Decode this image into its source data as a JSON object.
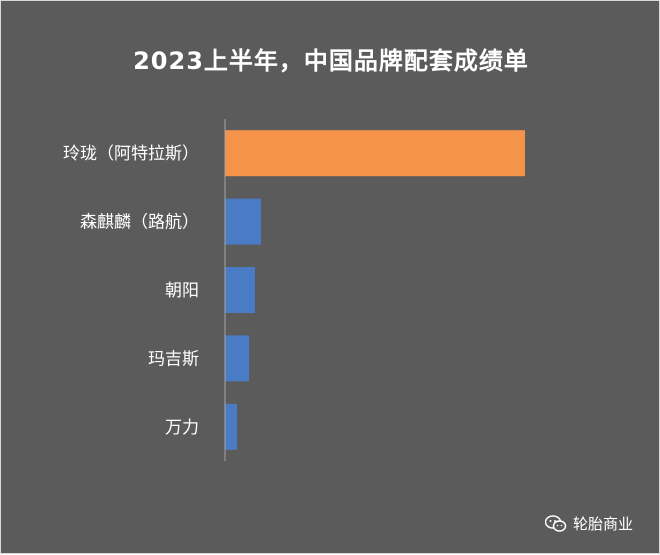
{
  "chart_data": {
    "type": "bar",
    "orientation": "horizontal",
    "title": "2023上半年，中国品牌配套成绩单",
    "categories": [
      "玲珑（阿特拉斯）",
      "森麒麟（路航）",
      "朝阳",
      "玛吉斯",
      "万力"
    ],
    "values": [
      100,
      12,
      10,
      8,
      4
    ],
    "xlim": [
      0,
      100
    ],
    "xlabel": "",
    "ylabel": "",
    "grid": false,
    "legend": "none",
    "colors": [
      "#f5934a",
      "#4a7cc6",
      "#4a7cc6",
      "#4a7cc6",
      "#4a7cc6"
    ],
    "background": "#5b5b5b"
  },
  "watermark": {
    "icon": "wechat-icon",
    "text": "轮胎商业"
  }
}
